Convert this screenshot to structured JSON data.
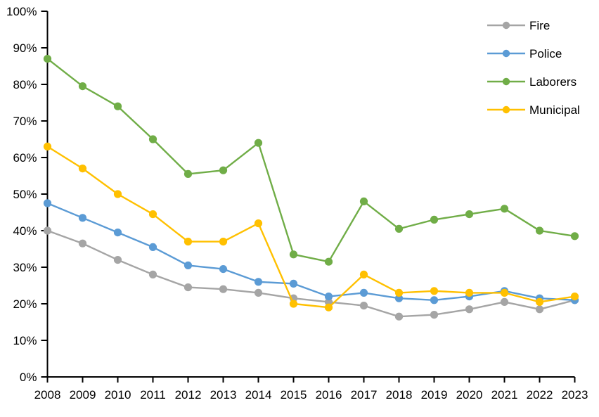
{
  "chart_data": {
    "type": "line",
    "title": "",
    "grid": "off",
    "legend_position": "top-right",
    "background_color": "#ffffff",
    "axis_color": "#000000",
    "x_axis": {
      "categories": [
        "2008",
        "2009",
        "2010",
        "2011",
        "2012",
        "2013",
        "2014",
        "2015",
        "2016",
        "2017",
        "2018",
        "2019",
        "2020",
        "2021",
        "2022",
        "2023"
      ]
    },
    "y_axis": {
      "min": 0,
      "max": 100,
      "step": 10,
      "unit": "%",
      "tick_labels": [
        "0%",
        "10%",
        "20%",
        "30%",
        "40%",
        "50%",
        "60%",
        "70%",
        "80%",
        "90%",
        "100%"
      ]
    },
    "series": [
      {
        "name": "Fire",
        "color": "#a5a5a5",
        "values": [
          40,
          36.5,
          32,
          28,
          24.5,
          24,
          23,
          21.5,
          20.5,
          19.5,
          16.5,
          17,
          18.5,
          20.5,
          18.5,
          21
        ]
      },
      {
        "name": "Police",
        "color": "#5b9bd5",
        "values": [
          47.5,
          43.5,
          39.5,
          35.5,
          30.5,
          29.5,
          26,
          25.5,
          22,
          23,
          21.5,
          21,
          22,
          23.5,
          21.5,
          21
        ]
      },
      {
        "name": "Laborers",
        "color": "#70ad47",
        "values": [
          87,
          79.5,
          74,
          65,
          55.5,
          56.5,
          64,
          33.5,
          31.5,
          48,
          40.5,
          43,
          44.5,
          46,
          40,
          38.5
        ]
      },
      {
        "name": "Municipal",
        "color": "#ffc000",
        "values": [
          63,
          57,
          50,
          44.5,
          37,
          37,
          42,
          20,
          19,
          28,
          23,
          23.5,
          23,
          23,
          20.5,
          22
        ]
      }
    ],
    "legend_entries": [
      "Fire",
      "Police",
      "Laborers",
      "Municipal"
    ]
  }
}
